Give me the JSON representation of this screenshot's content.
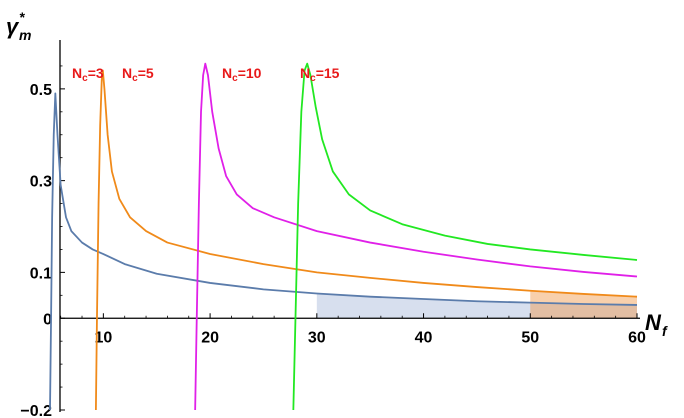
{
  "chart_data": {
    "type": "line",
    "title": "",
    "xlabel": "N",
    "xlabel_sub": "f",
    "ylabel": "γ",
    "ylabel_sup": "*",
    "ylabel_sub": "m",
    "xlim": [
      5,
      60
    ],
    "ylim": [
      -0.2,
      0.6
    ],
    "x_ticks": [
      10,
      20,
      30,
      40,
      50,
      60
    ],
    "y_ticks": [
      -0.2,
      0,
      0.1,
      0.3,
      0.5
    ],
    "y_tick_labels": [
      "−0.2",
      "0",
      "0.1",
      "0.3",
      "0.5"
    ],
    "grid": false,
    "series": [
      {
        "name": "N_c=3",
        "label_main": "N",
        "label_sub": "c",
        "label_rest": "=3",
        "color": "#5b7cab",
        "points": [
          [
            5.0,
            -0.2
          ],
          [
            5.1,
            0.0
          ],
          [
            5.2,
            0.22
          ],
          [
            5.35,
            0.4
          ],
          [
            5.5,
            0.49
          ],
          [
            5.7,
            0.4
          ],
          [
            6.0,
            0.29
          ],
          [
            6.5,
            0.22
          ],
          [
            7,
            0.19
          ],
          [
            8,
            0.165
          ],
          [
            9,
            0.15
          ],
          [
            10,
            0.14
          ],
          [
            12,
            0.118
          ],
          [
            15,
            0.097
          ],
          [
            20,
            0.077
          ],
          [
            25,
            0.063
          ],
          [
            30,
            0.054
          ],
          [
            35,
            0.047
          ],
          [
            40,
            0.042
          ],
          [
            45,
            0.037
          ],
          [
            50,
            0.034
          ],
          [
            55,
            0.031
          ],
          [
            60,
            0.029
          ]
        ],
        "shaded_range": [
          30,
          60
        ]
      },
      {
        "name": "N_c=5",
        "label_main": "N",
        "label_sub": "c",
        "label_rest": "=5",
        "color": "#f08a1a",
        "points": [
          [
            9.3,
            -0.2
          ],
          [
            9.4,
            0.0
          ],
          [
            9.55,
            0.25
          ],
          [
            9.7,
            0.42
          ],
          [
            9.85,
            0.52
          ],
          [
            9.95,
            0.54
          ],
          [
            10.1,
            0.5
          ],
          [
            10.4,
            0.4
          ],
          [
            10.8,
            0.32
          ],
          [
            11.5,
            0.26
          ],
          [
            12.5,
            0.22
          ],
          [
            14,
            0.19
          ],
          [
            16,
            0.165
          ],
          [
            20,
            0.14
          ],
          [
            25,
            0.118
          ],
          [
            30,
            0.1
          ],
          [
            35,
            0.088
          ],
          [
            40,
            0.077
          ],
          [
            45,
            0.068
          ],
          [
            50,
            0.06
          ],
          [
            55,
            0.053
          ],
          [
            60,
            0.047
          ]
        ],
        "shaded_range": [
          50,
          60
        ]
      },
      {
        "name": "N_c=10",
        "label_main": "N",
        "label_sub": "c",
        "label_rest": "=10",
        "color": "#e020e8",
        "points": [
          [
            18.6,
            -0.2
          ],
          [
            18.75,
            0.0
          ],
          [
            18.95,
            0.25
          ],
          [
            19.15,
            0.45
          ],
          [
            19.35,
            0.53
          ],
          [
            19.55,
            0.555
          ],
          [
            19.8,
            0.53
          ],
          [
            20.2,
            0.45
          ],
          [
            20.8,
            0.37
          ],
          [
            21.5,
            0.31
          ],
          [
            22.5,
            0.27
          ],
          [
            24,
            0.24
          ],
          [
            26,
            0.22
          ],
          [
            30,
            0.19
          ],
          [
            35,
            0.165
          ],
          [
            40,
            0.145
          ],
          [
            45,
            0.128
          ],
          [
            50,
            0.113
          ],
          [
            55,
            0.101
          ],
          [
            60,
            0.091
          ]
        ],
        "shaded_range": null
      },
      {
        "name": "N_c=15",
        "label_main": "N",
        "label_sub": "c",
        "label_rest": "=15",
        "color": "#22e822",
        "points": [
          [
            27.8,
            -0.2
          ],
          [
            28.0,
            0.0
          ],
          [
            28.25,
            0.25
          ],
          [
            28.55,
            0.45
          ],
          [
            28.85,
            0.54
          ],
          [
            29.1,
            0.555
          ],
          [
            29.4,
            0.53
          ],
          [
            29.9,
            0.46
          ],
          [
            30.5,
            0.39
          ],
          [
            31.5,
            0.32
          ],
          [
            33,
            0.27
          ],
          [
            35,
            0.235
          ],
          [
            38,
            0.205
          ],
          [
            42,
            0.18
          ],
          [
            46,
            0.162
          ],
          [
            50,
            0.15
          ],
          [
            55,
            0.138
          ],
          [
            60,
            0.127
          ]
        ],
        "shaded_range": null
      }
    ]
  }
}
